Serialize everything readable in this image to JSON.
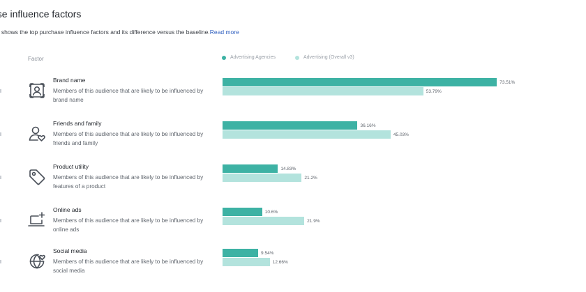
{
  "header": {
    "title": "ase influence factors",
    "subtitle": "ph shows the top purchase influence factors and its difference versus the baseline.",
    "read_more": "Read more"
  },
  "table": {
    "factor_header": "Factor"
  },
  "legend": [
    {
      "label": "Advertising Agencies",
      "color": "#3db2a4"
    },
    {
      "label": "Advertising (Overall v3)",
      "color": "#b3e3dd"
    }
  ],
  "rows": [
    {
      "label": "Brand name",
      "icon": "portrait-frame-icon",
      "desc": "Members of this audience that are likely to be influenced by brand name",
      "audience_pct": 73.51,
      "baseline_pct": 53.79,
      "audience_label": "73.51%",
      "baseline_label": "53.79%"
    },
    {
      "label": "Friends and family",
      "icon": "user-heart-icon",
      "desc": "Members of this audience that are likely to be influenced by friends and family",
      "audience_pct": 36.16,
      "baseline_pct": 45.03,
      "audience_label": "36.16%",
      "baseline_label": "45.03%"
    },
    {
      "label": "Product utility",
      "icon": "price-tag-icon",
      "desc": "Members of this audience that are likely to be influenced by features of a product",
      "audience_pct": 14.83,
      "baseline_pct": 21.2,
      "audience_label": "14.83%",
      "baseline_label": "21.2%"
    },
    {
      "label": "Online ads",
      "icon": "laptop-plus-icon",
      "desc": "Members of this audience that are likely to be influenced by online ads",
      "audience_pct": 10.6,
      "baseline_pct": 21.9,
      "audience_label": "10.6%",
      "baseline_label": "21.9%"
    },
    {
      "label": "Social media",
      "icon": "globe-heart-icon",
      "desc": "Members of this audience that are likely to be influenced by social media",
      "audience_pct": 9.54,
      "baseline_pct": 12.66,
      "audience_label": "9.54%",
      "baseline_label": "12.66%"
    }
  ]
}
